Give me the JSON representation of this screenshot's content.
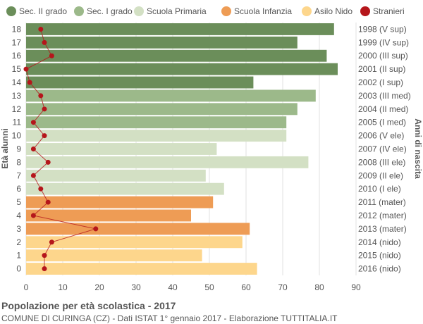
{
  "footer": {
    "title": "Popolazione per età scolastica - 2017",
    "subtitle": "COMUNE DI CURINGA (CZ) - Dati ISTAT 1° gennaio 2017 - Elaborazione TUTTITALIA.IT"
  },
  "chart_data": {
    "type": "bar",
    "orientation": "horizontal",
    "ylabel_left": "Età alunni",
    "ylabel_right": "Anni di nascita",
    "xlim": [
      0,
      90
    ],
    "xticks": [
      0,
      10,
      20,
      30,
      40,
      50,
      60,
      70,
      80,
      90
    ],
    "grid": true,
    "legend_position": "top",
    "legend": [
      {
        "label": "Sec. II grado",
        "color": "#6b8e5a"
      },
      {
        "label": "Sec. I grado",
        "color": "#9cb98a"
      },
      {
        "label": "Scuola Primaria",
        "color": "#d3e0c4"
      },
      {
        "label": "Scuola Infanzia",
        "color": "#ee9c55"
      },
      {
        "label": "Asilo Nido",
        "color": "#fdd68c"
      },
      {
        "label": "Stranieri",
        "color": "#b5161b"
      }
    ],
    "rows": [
      {
        "age": "18",
        "birth": "1998 (V sup)",
        "value": 84,
        "stranieri": 4,
        "group": 0
      },
      {
        "age": "17",
        "birth": "1999 (IV sup)",
        "value": 74,
        "stranieri": 5,
        "group": 0
      },
      {
        "age": "16",
        "birth": "2000 (III sup)",
        "value": 82,
        "stranieri": 7,
        "group": 0
      },
      {
        "age": "15",
        "birth": "2001 (II sup)",
        "value": 85,
        "stranieri": 0,
        "group": 0
      },
      {
        "age": "14",
        "birth": "2002 (I sup)",
        "value": 62,
        "stranieri": 1,
        "group": 0
      },
      {
        "age": "13",
        "birth": "2003 (III med)",
        "value": 79,
        "stranieri": 4,
        "group": 1
      },
      {
        "age": "12",
        "birth": "2004 (II med)",
        "value": 74,
        "stranieri": 5,
        "group": 1
      },
      {
        "age": "11",
        "birth": "2005 (I med)",
        "value": 71,
        "stranieri": 2,
        "group": 1
      },
      {
        "age": "10",
        "birth": "2006 (V ele)",
        "value": 71,
        "stranieri": 5,
        "group": 2
      },
      {
        "age": "9",
        "birth": "2007 (IV ele)",
        "value": 52,
        "stranieri": 2,
        "group": 2
      },
      {
        "age": "8",
        "birth": "2008 (III ele)",
        "value": 77,
        "stranieri": 6,
        "group": 2
      },
      {
        "age": "7",
        "birth": "2009 (II ele)",
        "value": 49,
        "stranieri": 2,
        "group": 2
      },
      {
        "age": "6",
        "birth": "2010 (I ele)",
        "value": 54,
        "stranieri": 4,
        "group": 2
      },
      {
        "age": "5",
        "birth": "2011 (mater)",
        "value": 51,
        "stranieri": 6,
        "group": 3
      },
      {
        "age": "4",
        "birth": "2012 (mater)",
        "value": 45,
        "stranieri": 2,
        "group": 3
      },
      {
        "age": "3",
        "birth": "2013 (mater)",
        "value": 61,
        "stranieri": 19,
        "group": 3
      },
      {
        "age": "2",
        "birth": "2014 (nido)",
        "value": 59,
        "stranieri": 7,
        "group": 4
      },
      {
        "age": "1",
        "birth": "2015 (nido)",
        "value": 48,
        "stranieri": 5,
        "group": 4
      },
      {
        "age": "0",
        "birth": "2016 (nido)",
        "value": 63,
        "stranieri": 5,
        "group": 4
      }
    ]
  }
}
